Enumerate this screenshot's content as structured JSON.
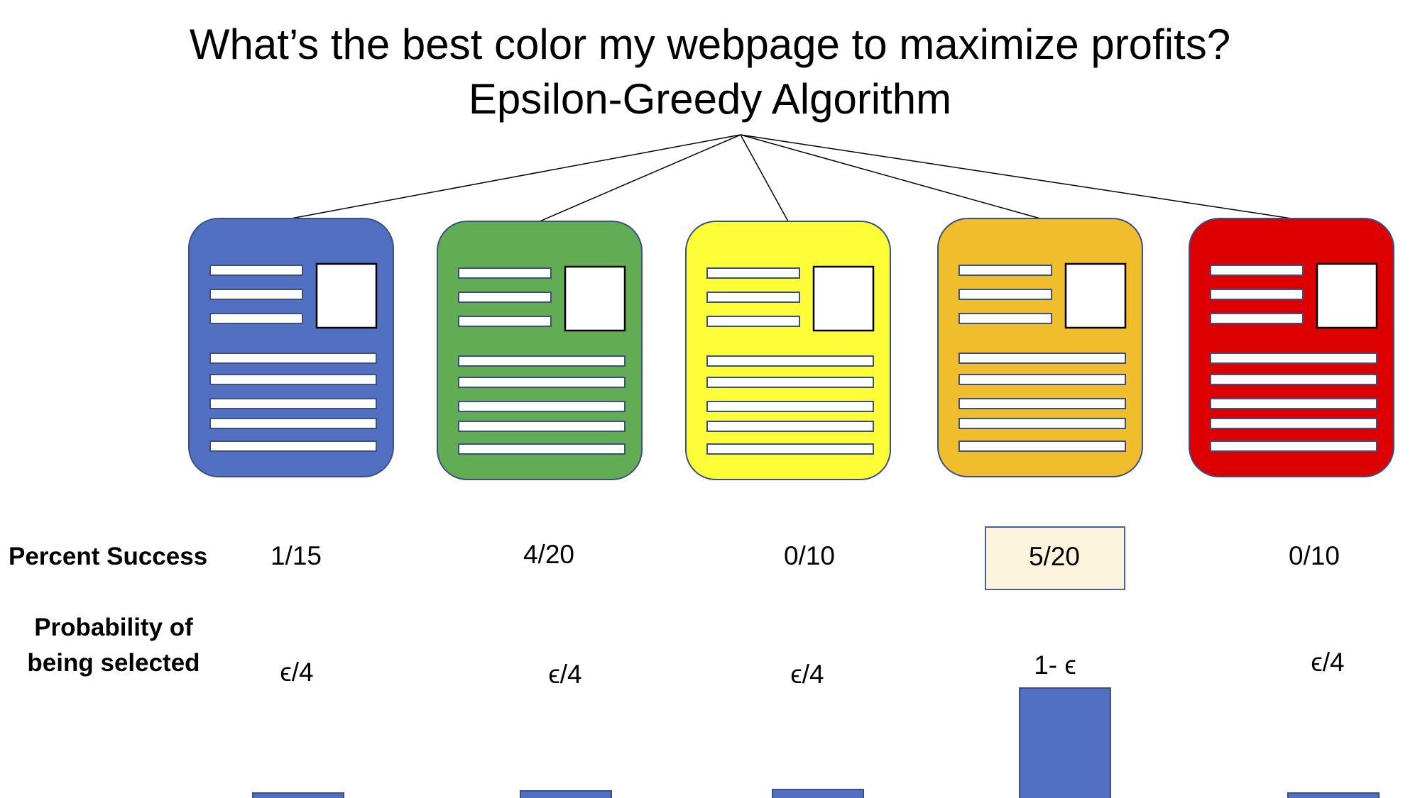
{
  "title": {
    "line1": "What’s the best color my webpage to maximize profits?",
    "line2": "Epsilon-Greedy Algorithm"
  },
  "row_labels": {
    "success": "Percent  Success",
    "probability": "Probability of being selected"
  },
  "colors": {
    "bar": "#5170c1",
    "highlight_fill": "#fdf4dd"
  },
  "pages": [
    {
      "name": "blue",
      "color": "#5170c1",
      "success": "1/15",
      "probability": "ϵ/4",
      "selected": false
    },
    {
      "name": "green",
      "color": "#62ad54",
      "success": "4/20",
      "probability": "ϵ/4",
      "selected": false
    },
    {
      "name": "yellow",
      "color": "#fefe38",
      "success": "0/10",
      "probability": "ϵ/4",
      "selected": false
    },
    {
      "name": "orange",
      "color": "#f0be2c",
      "success": "5/20",
      "probability": "1- ϵ",
      "selected": true
    },
    {
      "name": "red",
      "color": "#dc0000",
      "success": "0/10",
      "probability": "ϵ/4",
      "selected": false
    }
  ]
}
